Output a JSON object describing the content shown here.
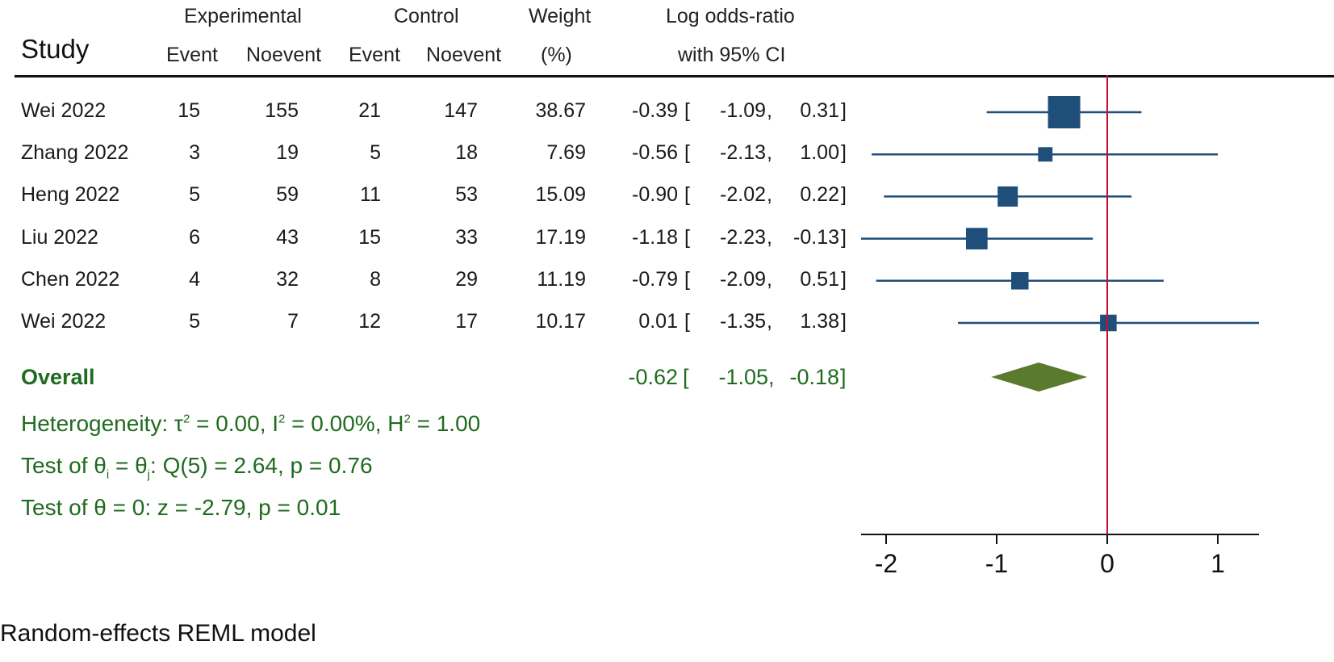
{
  "header": {
    "study": "Study",
    "experimental": "Experimental",
    "control": "Control",
    "weight": "Weight",
    "weight_unit": "(%)",
    "effect": "Log odds-ratio",
    "effect_ci": "with 95% CI",
    "event": "Event",
    "noevent": "Noevent"
  },
  "chart_data": {
    "type": "forest",
    "xlabel": "",
    "xlim": [
      -2.25,
      1.38
    ],
    "xticks": [
      -2,
      -1,
      0,
      1
    ],
    "reference_line": 0,
    "studies": [
      {
        "name": "Wei 2022",
        "exp_event": "15",
        "exp_noevent": "155",
        "ctl_event": "21",
        "ctl_noevent": "147",
        "weight": "38.67",
        "est": "-0.39",
        "lo": "-1.09",
        "hi": "0.31",
        "est_v": -0.39,
        "lo_v": -1.09,
        "hi_v": 0.31,
        "weight_v": 38.67
      },
      {
        "name": "Zhang 2022",
        "exp_event": "3",
        "exp_noevent": "19",
        "ctl_event": "5",
        "ctl_noevent": "18",
        "weight": "7.69",
        "est": "-0.56",
        "lo": "-2.13",
        "hi": "1.00",
        "est_v": -0.56,
        "lo_v": -2.13,
        "hi_v": 1.0,
        "weight_v": 7.69
      },
      {
        "name": "Heng 2022",
        "exp_event": "5",
        "exp_noevent": "59",
        "ctl_event": "11",
        "ctl_noevent": "53",
        "weight": "15.09",
        "est": "-0.90",
        "lo": "-2.02",
        "hi": "0.22",
        "est_v": -0.9,
        "lo_v": -2.02,
        "hi_v": 0.22,
        "weight_v": 15.09
      },
      {
        "name": "Liu 2022",
        "exp_event": "6",
        "exp_noevent": "43",
        "ctl_event": "15",
        "ctl_noevent": "33",
        "weight": "17.19",
        "est": "-1.18",
        "lo": "-2.23",
        "hi": "-0.13",
        "est_v": -1.18,
        "lo_v": -2.23,
        "hi_v": -0.13,
        "weight_v": 17.19
      },
      {
        "name": "Chen 2022",
        "exp_event": "4",
        "exp_noevent": "32",
        "ctl_event": "8",
        "ctl_noevent": "29",
        "weight": "11.19",
        "est": "-0.79",
        "lo": "-2.09",
        "hi": "0.51",
        "est_v": -0.79,
        "lo_v": -2.09,
        "hi_v": 0.51,
        "weight_v": 11.19
      },
      {
        "name": "Wei 2022",
        "exp_event": "5",
        "exp_noevent": "7",
        "ctl_event": "12",
        "ctl_noevent": "17",
        "weight": "10.17",
        "est": "0.01",
        "lo": "-1.35",
        "hi": "1.38",
        "est_v": 0.01,
        "lo_v": -1.35,
        "hi_v": 1.38,
        "weight_v": 10.17
      }
    ],
    "overall": {
      "label": "Overall",
      "est": "-0.62",
      "lo": "-1.05",
      "hi": "-0.18",
      "est_v": -0.62,
      "lo_v": -1.05,
      "hi_v": -0.18
    },
    "colors": {
      "marker": "#1f4e7a",
      "diamond": "#5a7a2e",
      "reference": "#c8102e",
      "text_green": "#1f6b1f"
    }
  },
  "stats": {
    "heterogeneity_prefix": "Heterogeneity: τ",
    "heterogeneity_mid1": " = 0.00, I",
    "heterogeneity_mid2": " = 0.00%, H",
    "heterogeneity_end": " = 1.00",
    "sq": "2",
    "test1_prefix": "Test of θ",
    "test1_sub_i": "i",
    "test1_eq": " = θ",
    "test1_sub_j": "j",
    "test1_rest": ": Q(5) = 2.64, p = 0.76",
    "test2": "Test of θ = 0: z = -2.79, p = 0.01"
  },
  "footer": "Random-effects REML model"
}
